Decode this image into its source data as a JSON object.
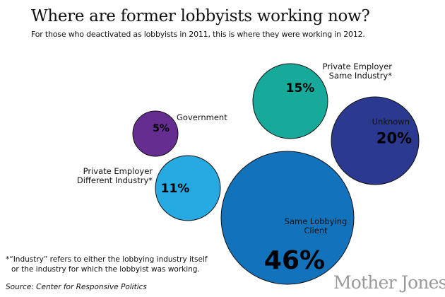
{
  "chart_data": {
    "type": "bubble",
    "title": "Where are former lobbyists working now?",
    "subtitle": "For those who deactivated as lobbyists in 2011, this is where they were working in 2012.",
    "unit": "%",
    "series": [
      {
        "name": "Government",
        "label_lines": [
          "Government"
        ],
        "value": 5,
        "value_label": "5%",
        "color": "#652d90"
      },
      {
        "name": "Private Employer Different Industry*",
        "label_lines": [
          "Private Employer",
          "Different Industry*"
        ],
        "value": 11,
        "value_label": "11%",
        "color": "#27aae1"
      },
      {
        "name": "Private Employer Same Industry*",
        "label_lines": [
          "Private Employer",
          "Same Industry*"
        ],
        "value": 15,
        "value_label": "15%",
        "color": "#17a99a"
      },
      {
        "name": "Unknown",
        "label_lines": [
          "Unknown"
        ],
        "value": 20,
        "value_label": "20%",
        "color": "#2b3990"
      },
      {
        "name": "Same Lobbying Client",
        "label_lines": [
          "Same Lobbying",
          "Client"
        ],
        "value": 46,
        "value_label": "46%",
        "color": "#1272bb"
      }
    ]
  },
  "footnote": [
    "*“Industry” refers to either the lobbying industry itself",
    "or the industry for which the lobbyist was working."
  ],
  "source": "Source: Center for Responsive Politics",
  "logo": "Mother Jones"
}
